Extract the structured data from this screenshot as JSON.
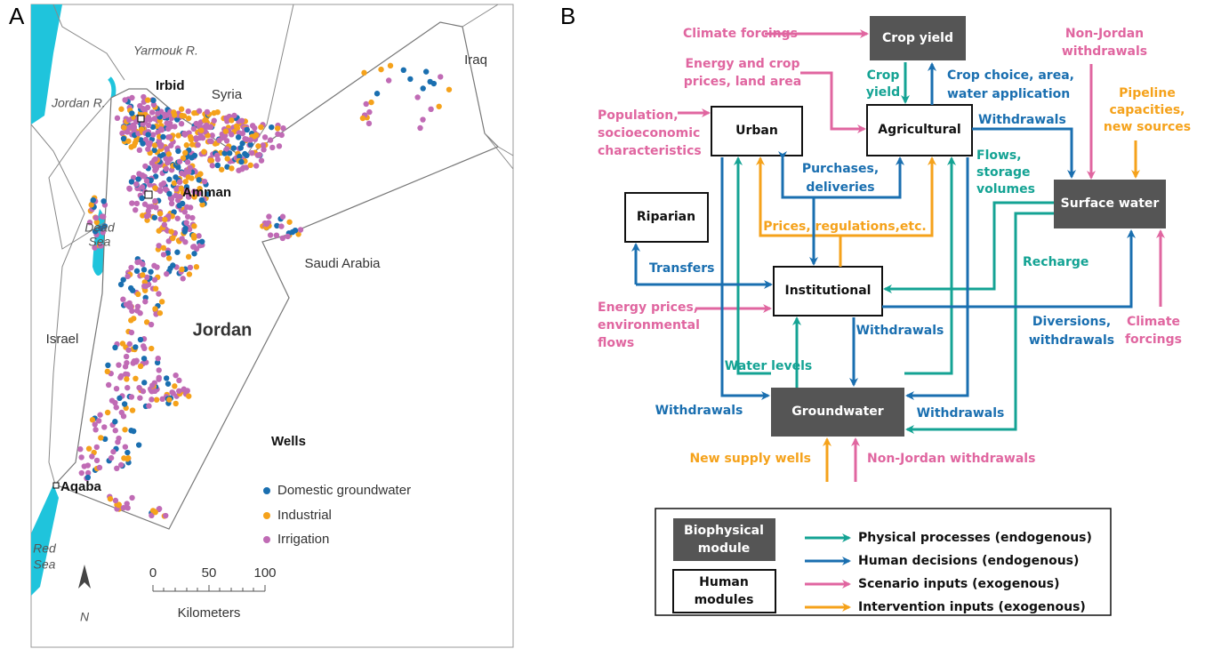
{
  "panel_a": {
    "label": "A",
    "places": [
      "Syria",
      "Iraq",
      "Saudi Arabia",
      "Israel",
      "Jordan"
    ],
    "water": [
      [
        "Dead",
        "Sea"
      ],
      [
        "Red",
        "Sea"
      ]
    ],
    "rivers": [
      "Yarmouk R.",
      "Jordan R."
    ],
    "cities": [
      "Irbid",
      "Amman",
      "Aqaba"
    ],
    "legend": {
      "title": "Wells",
      "items": [
        "Domestic groundwater",
        "Industrial",
        "Irrigation"
      ]
    },
    "scale": {
      "ticks": [
        0,
        50,
        100
      ],
      "unit": "Kilometers"
    },
    "north": "N"
  },
  "panel_b": {
    "label": "B",
    "modules": [
      "Crop yield",
      "Urban",
      "Agricultural",
      "Riparian",
      "Institutional",
      "Surface water",
      "Groundwater"
    ],
    "scenario_inputs": [
      [
        "Climate forcings"
      ],
      [
        "Energy and crop",
        "prices, land area"
      ],
      [
        "Population,",
        "socioeconomic",
        "characteristics"
      ],
      [
        "Non-Jordan",
        "withdrawals"
      ],
      [
        "Energy prices,",
        "environmental",
        "flows"
      ],
      [
        "Climate",
        "forcings"
      ],
      [
        "Non-Jordan withdrawals"
      ]
    ],
    "intervention_inputs": [
      [
        "Pipeline",
        "capacities,",
        "new sources"
      ],
      [
        "Prices,  regulations,etc."
      ],
      [
        "New supply wells"
      ]
    ],
    "physical_flows": [
      [
        "Crop",
        "yield"
      ],
      [
        "Flows,",
        "storage",
        "volumes"
      ],
      [
        "Recharge"
      ],
      [
        "Water levels"
      ]
    ],
    "human_flows": [
      [
        "Crop choice, area,",
        "water application"
      ],
      [
        "Withdrawals"
      ],
      [
        "Purchases,",
        "deliveries"
      ],
      [
        "Transfers"
      ],
      [
        "Withdrawals"
      ],
      [
        "Diversions,",
        "withdrawals"
      ],
      [
        "Withdrawals"
      ],
      [
        "Withdrawals"
      ]
    ],
    "legend": {
      "modules": [
        [
          "Biophysical",
          "module"
        ],
        [
          "Human",
          "modules"
        ]
      ],
      "items": [
        "Physical processes (endogenous)",
        "Human decisions (endogenous)",
        "Scenario inputs (exogenous)",
        "Intervention inputs (exogenous)"
      ]
    }
  }
}
